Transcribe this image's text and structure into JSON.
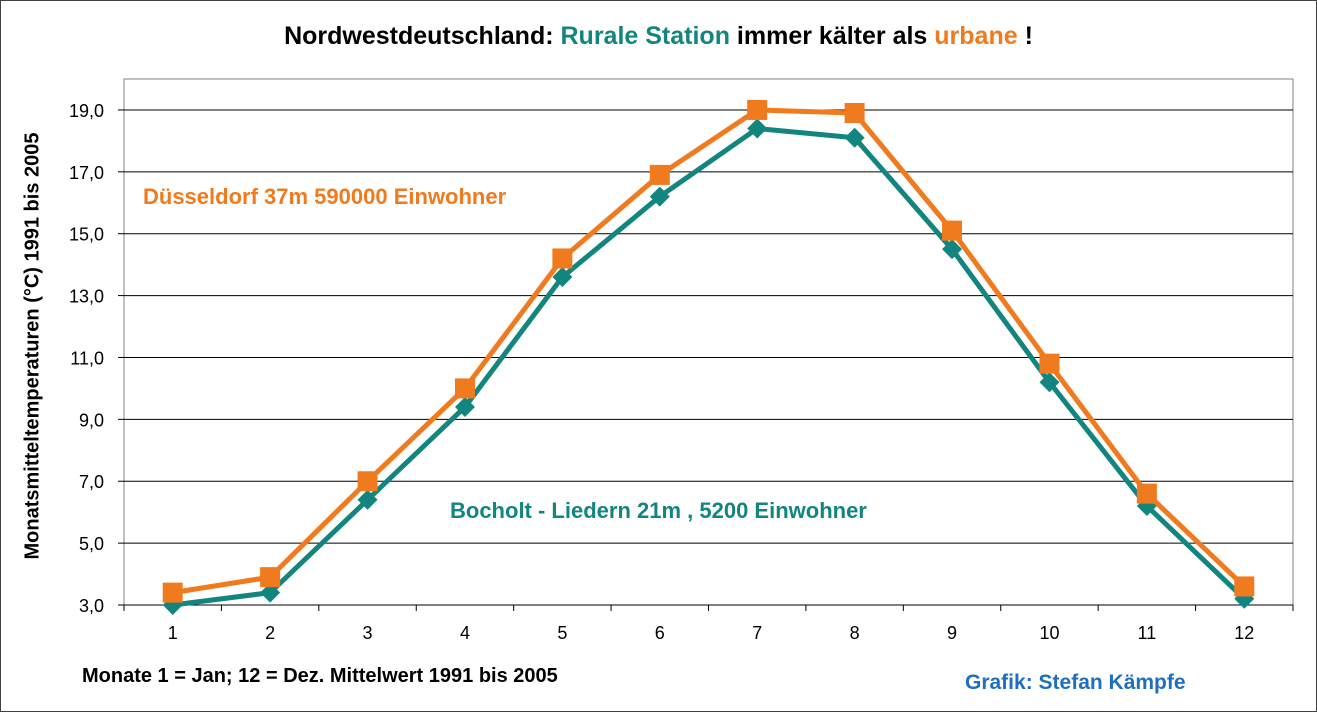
{
  "title": {
    "part1": "Nordwestdeutschland: ",
    "part2": "Rurale Station",
    "part3": " immer kälter als ",
    "part4": "urbane",
    "part5": " !"
  },
  "colors": {
    "urban": "#F07A1E",
    "rural": "#13857F",
    "credit": "#1F6FBF"
  },
  "footnote": "Monate 1 = Jan; 12 = Dez.  Mittelwert  1991 bis 2005",
  "credit": "Grafik: Stefan Kämpfe",
  "chart_data": {
    "type": "line",
    "ylabel": "Monatsmitteltemperaturen  (°C) 1991 bis 2005",
    "xlabel": "",
    "x": [
      1,
      2,
      3,
      4,
      5,
      6,
      7,
      8,
      9,
      10,
      11,
      12
    ],
    "x_tick_labels": [
      "1",
      "2",
      "3",
      "4",
      "5",
      "6",
      "7",
      "8",
      "9",
      "10",
      "11",
      "12"
    ],
    "ylim": [
      3.0,
      20.0
    ],
    "y_ticks": [
      3.0,
      5.0,
      7.0,
      9.0,
      11.0,
      13.0,
      15.0,
      17.0,
      19.0
    ],
    "y_tick_labels": [
      "3,0",
      "5,0",
      "7,0",
      "9,0",
      "11,0",
      "13,0",
      "15,0",
      "17,0",
      "19,0"
    ],
    "grid": "horizontal",
    "series": [
      {
        "name": "Düsseldorf  37m  590000  Einwohner",
        "marker": "square",
        "color": "#F07A1E",
        "values": [
          3.4,
          3.9,
          7.0,
          10.0,
          14.2,
          16.9,
          19.0,
          18.9,
          15.1,
          10.8,
          6.6,
          3.6
        ]
      },
      {
        "name": "Bocholt - Liedern  21m , 5200  Einwohner",
        "marker": "diamond",
        "color": "#13857F",
        "values": [
          3.0,
          3.4,
          6.4,
          9.4,
          13.6,
          16.2,
          18.4,
          18.1,
          14.5,
          10.2,
          6.2,
          3.2
        ]
      }
    ]
  }
}
